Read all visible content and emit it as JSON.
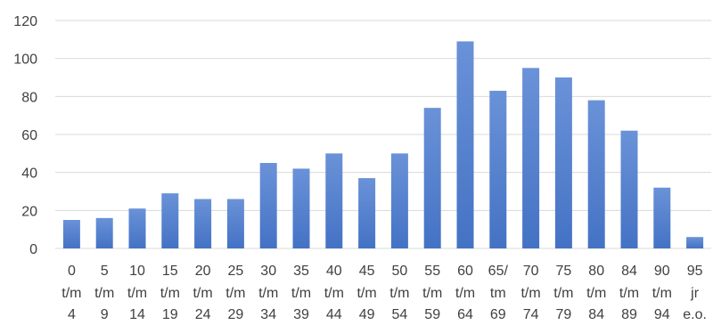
{
  "chart_data": {
    "type": "bar",
    "title": "",
    "xlabel": "",
    "ylabel": "",
    "ylim": [
      0,
      120
    ],
    "yticks": [
      0,
      20,
      40,
      60,
      80,
      100,
      120
    ],
    "grid": true,
    "legend": "none",
    "bar_color": "#4472c4",
    "bar_color_light": "#6a92d8",
    "categories": [
      [
        "0",
        "t/m",
        "4"
      ],
      [
        "5",
        "t/m",
        "9"
      ],
      [
        "10",
        "t/m",
        "14"
      ],
      [
        "15",
        "t/m",
        "19"
      ],
      [
        "20",
        "t/m",
        "24"
      ],
      [
        "25",
        "t/m",
        "29"
      ],
      [
        "30",
        "t/m",
        "34"
      ],
      [
        "35",
        "t/m",
        "39"
      ],
      [
        "40",
        "t/m",
        "44"
      ],
      [
        "45",
        "t/m",
        "49"
      ],
      [
        "50",
        "t/m",
        "54"
      ],
      [
        "55",
        "t/m",
        "59"
      ],
      [
        "60",
        "t/m",
        "64"
      ],
      [
        "65/",
        "tm",
        "69"
      ],
      [
        "70",
        "t/m",
        "74"
      ],
      [
        "75",
        "t/m",
        "79"
      ],
      [
        "80",
        "t/m",
        "84"
      ],
      [
        "84",
        "t/m",
        "89"
      ],
      [
        "90",
        "t/m",
        "94"
      ],
      [
        "95",
        "jr",
        "e.o."
      ]
    ],
    "values": [
      15,
      16,
      21,
      29,
      26,
      26,
      45,
      42,
      50,
      37,
      50,
      74,
      109,
      83,
      95,
      90,
      78,
      62,
      32,
      6
    ]
  }
}
